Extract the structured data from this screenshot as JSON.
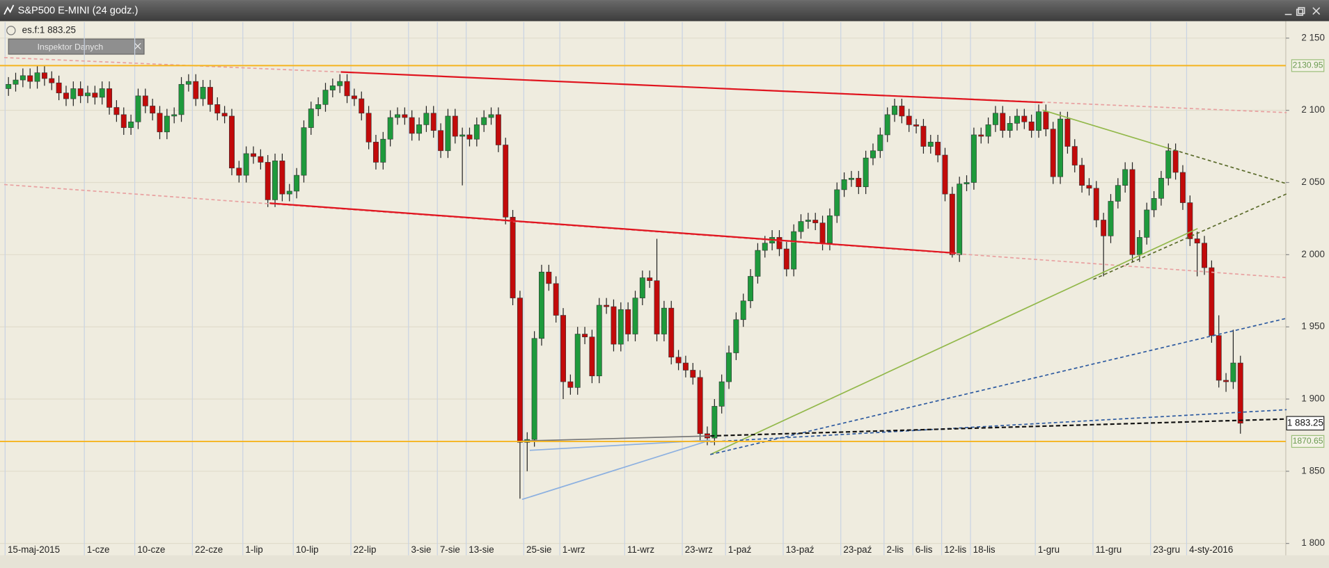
{
  "window": {
    "title": "S&P500 E-MINI (24 godz.)",
    "header_text": "es.f:1 883.25",
    "inspector_button": "Inspektor Danych"
  },
  "chart_data": {
    "type": "candlestick",
    "up_color": "#1e9a3c",
    "down_color": "#c20a0a",
    "categories": [
      "15-maj-2015",
      null,
      null,
      null,
      null,
      null,
      null,
      null,
      null,
      null,
      null,
      "1-cze",
      null,
      null,
      null,
      null,
      null,
      null,
      "10-cze",
      null,
      null,
      null,
      null,
      null,
      null,
      null,
      "22-cze",
      null,
      null,
      null,
      null,
      null,
      null,
      "1-lip",
      null,
      null,
      null,
      null,
      null,
      null,
      "10-lip",
      null,
      null,
      null,
      null,
      null,
      null,
      null,
      "22-lip",
      null,
      null,
      null,
      null,
      null,
      null,
      null,
      "3-sie",
      null,
      null,
      null,
      "7-sie",
      null,
      null,
      null,
      "13-sie",
      null,
      null,
      null,
      null,
      null,
      null,
      null,
      "25-sie",
      null,
      null,
      null,
      null,
      "1-wrz",
      null,
      null,
      null,
      null,
      null,
      null,
      null,
      null,
      "11-wrz",
      null,
      null,
      null,
      null,
      null,
      null,
      null,
      "23-wrz",
      null,
      null,
      null,
      null,
      null,
      "1-paź",
      null,
      null,
      null,
      null,
      null,
      null,
      null,
      "13-paź",
      null,
      null,
      null,
      null,
      null,
      null,
      null,
      "23-paź",
      null,
      null,
      null,
      null,
      null,
      "2-lis",
      null,
      null,
      null,
      "6-lis",
      null,
      null,
      null,
      "12-lis",
      null,
      null,
      null,
      "18-lis",
      null,
      null,
      null,
      null,
      null,
      null,
      null,
      null,
      "1-gru",
      null,
      null,
      null,
      null,
      null,
      null,
      null,
      "11-gru",
      null,
      null,
      null,
      null,
      null,
      null,
      null,
      "23-gru",
      null,
      null,
      null,
      null,
      "4-sty-2016",
      null,
      null,
      null,
      null,
      null,
      null,
      null
    ],
    "open": [
      2115,
      2118,
      2121,
      2124,
      2120,
      2126,
      2122,
      2119,
      2112,
      2108,
      2115,
      2110,
      2112,
      2109,
      2115,
      2102,
      2097,
      2088,
      2092,
      2110,
      2103,
      2098,
      2085,
      2096,
      2097,
      2118,
      2120,
      2108,
      2116,
      2104,
      2098,
      2096,
      2060,
      2055,
      2070,
      2068,
      2064,
      2038,
      2065,
      2042,
      2044,
      2055,
      2088,
      2101,
      2104,
      2114,
      2117,
      2120,
      2110,
      2108,
      2098,
      2078,
      2064,
      2080,
      2095,
      2097,
      2095,
      2084,
      2090,
      2098,
      2086,
      2072,
      2096,
      2082,
      2083,
      2080,
      2090,
      2095,
      2097,
      2076,
      2026,
      1970,
      1870,
      1872,
      1942,
      1988,
      1980,
      1958,
      1912,
      1908,
      1945,
      1943,
      1916,
      1965,
      1964,
      1938,
      1962,
      1945,
      1970,
      1984,
      1982,
      1945,
      1963,
      1929,
      1925,
      1920,
      1915,
      1876,
      1873,
      1895,
      1912,
      1932,
      1955,
      1968,
      1985,
      2003,
      2008,
      2012,
      2004,
      1990,
      2016,
      2023,
      2024,
      2022,
      2008,
      2027,
      2045,
      2052,
      2053,
      2047,
      2067,
      2072,
      2083,
      2097,
      2103,
      2096,
      2090,
      2089,
      2075,
      2078,
      2069,
      2042,
      2000,
      2049,
      2050,
      2083,
      2082,
      2090,
      2098,
      2086,
      2091,
      2096,
      2092,
      2086,
      2099,
      2087,
      2054,
      2094,
      2075,
      2062,
      2048,
      2046,
      2024,
      2013,
      2037,
      2048,
      2059,
      2000,
      2012,
      2031,
      2039,
      2053,
      2072,
      2057,
      2036,
      2011,
      2008,
      1991,
      1944,
      1913,
      1912,
      1925
    ],
    "high": [
      2123,
      2126,
      2129,
      2129,
      2131,
      2131,
      2127,
      2124,
      2117,
      2120,
      2120,
      2117,
      2117,
      2120,
      2120,
      2107,
      2102,
      2097,
      2115,
      2115,
      2108,
      2103,
      2101,
      2102,
      2123,
      2125,
      2125,
      2121,
      2121,
      2109,
      2103,
      2101,
      2065,
      2075,
      2075,
      2073,
      2069,
      2070,
      2070,
      2049,
      2060,
      2093,
      2106,
      2109,
      2119,
      2122,
      2125,
      2125,
      2115,
      2113,
      2103,
      2083,
      2085,
      2100,
      2102,
      2102,
      2100,
      2095,
      2103,
      2103,
      2091,
      2101,
      2101,
      2088,
      2088,
      2095,
      2100,
      2102,
      2102,
      2081,
      2031,
      1975,
      1877,
      1947,
      1993,
      1993,
      1985,
      1963,
      1917,
      1950,
      1950,
      1948,
      1970,
      1970,
      1969,
      1967,
      1967,
      1975,
      1989,
      1989,
      2011,
      1968,
      1968,
      1934,
      1930,
      1925,
      1920,
      1881,
      1900,
      1917,
      1937,
      1960,
      1973,
      1990,
      2008,
      2013,
      2017,
      2017,
      2009,
      2021,
      2028,
      2029,
      2029,
      2027,
      2032,
      2050,
      2057,
      2058,
      2058,
      2072,
      2077,
      2088,
      2102,
      2108,
      2108,
      2101,
      2094,
      2094,
      2083,
      2083,
      2074,
      2047,
      2054,
      2055,
      2088,
      2088,
      2095,
      2103,
      2103,
      2096,
      2101,
      2101,
      2097,
      2104,
      2104,
      2092,
      2099,
      2099,
      2080,
      2067,
      2053,
      2051,
      2029,
      2042,
      2053,
      2064,
      2064,
      2017,
      2036,
      2044,
      2058,
      2077,
      2077,
      2062,
      2041,
      2016,
      2013,
      1996,
      1958,
      1918,
      1948,
      1930
    ],
    "low": [
      2110,
      2113,
      2116,
      2115,
      2115,
      2117,
      2114,
      2107,
      2103,
      2103,
      2105,
      2105,
      2104,
      2104,
      2097,
      2092,
      2083,
      2083,
      2087,
      2098,
      2093,
      2080,
      2080,
      2091,
      2092,
      2113,
      2103,
      2103,
      2099,
      2093,
      2091,
      2055,
      2050,
      2050,
      2063,
      2059,
      2033,
      2033,
      2037,
      2037,
      2039,
      2050,
      2083,
      2096,
      2099,
      2109,
      2112,
      2105,
      2103,
      2093,
      2073,
      2059,
      2059,
      2075,
      2090,
      2090,
      2079,
      2079,
      2085,
      2081,
      2067,
      2067,
      2077,
      2048,
      2075,
      2075,
      2085,
      2090,
      2071,
      2021,
      1965,
      1831,
      1850,
      1867,
      1937,
      1975,
      1953,
      1900,
      1903,
      1903,
      1938,
      1911,
      1911,
      1959,
      1933,
      1933,
      1940,
      1940,
      1965,
      1977,
      1940,
      1940,
      1924,
      1920,
      1915,
      1910,
      1871,
      1868,
      1868,
      1890,
      1907,
      1927,
      1950,
      1963,
      1980,
      1998,
      2003,
      1999,
      1985,
      1985,
      2011,
      2018,
      2017,
      2003,
      2003,
      2022,
      2040,
      2047,
      2042,
      2042,
      2062,
      2067,
      2078,
      2092,
      2091,
      2085,
      2084,
      2070,
      2070,
      2064,
      2037,
      1998,
      1995,
      2044,
      2045,
      2077,
      2077,
      2085,
      2081,
      2081,
      2086,
      2087,
      2081,
      2081,
      2082,
      2049,
      2049,
      2070,
      2057,
      2043,
      2041,
      2019,
      1985,
      2008,
      2032,
      2043,
      1995,
      1995,
      2007,
      2026,
      2034,
      2048,
      2052,
      2031,
      2006,
      1985,
      1986,
      1939,
      1908,
      1905,
      1907,
      1876
    ],
    "close": [
      2118,
      2121,
      2124,
      2120,
      2126,
      2122,
      2119,
      2112,
      2108,
      2115,
      2110,
      2112,
      2109,
      2115,
      2102,
      2097,
      2088,
      2092,
      2110,
      2103,
      2098,
      2085,
      2096,
      2097,
      2118,
      2120,
      2108,
      2116,
      2104,
      2098,
      2096,
      2060,
      2055,
      2070,
      2068,
      2064,
      2038,
      2065,
      2042,
      2044,
      2055,
      2088,
      2101,
      2104,
      2114,
      2117,
      2120,
      2110,
      2108,
      2098,
      2078,
      2064,
      2080,
      2095,
      2097,
      2095,
      2084,
      2090,
      2098,
      2086,
      2072,
      2096,
      2082,
      2083,
      2080,
      2090,
      2095,
      2097,
      2076,
      2026,
      1970,
      1870,
      1872,
      1942,
      1988,
      1980,
      1958,
      1912,
      1908,
      1945,
      1943,
      1916,
      1965,
      1964,
      1938,
      1962,
      1945,
      1970,
      1984,
      1982,
      1945,
      1963,
      1929,
      1925,
      1920,
      1915,
      1876,
      1873,
      1895,
      1912,
      1932,
      1955,
      1968,
      1985,
      2003,
      2008,
      2012,
      2004,
      1990,
      2016,
      2023,
      2024,
      2022,
      2008,
      2027,
      2045,
      2052,
      2053,
      2047,
      2067,
      2072,
      2083,
      2097,
      2103,
      2096,
      2090,
      2089,
      2075,
      2078,
      2069,
      2042,
      2000,
      2049,
      2050,
      2083,
      2082,
      2090,
      2098,
      2086,
      2091,
      2096,
      2092,
      2086,
      2099,
      2087,
      2054,
      2094,
      2075,
      2062,
      2048,
      2046,
      2024,
      2013,
      2037,
      2048,
      2059,
      2000,
      2012,
      2031,
      2039,
      2053,
      2072,
      2057,
      2036,
      2011,
      2008,
      1991,
      1944,
      1913,
      1912,
      1925,
      1883.25
    ],
    "ylim": [
      1800,
      2150
    ],
    "yticks": [
      {
        "value": 1800,
        "label": "1 800"
      },
      {
        "value": 1850,
        "label": "1 850"
      },
      {
        "value": 1900,
        "label": "1 900"
      },
      {
        "value": 1950,
        "label": "1 950"
      },
      {
        "value": 2000,
        "label": "2 000"
      },
      {
        "value": 2050,
        "label": "2 050"
      },
      {
        "value": 2100,
        "label": "2 100"
      },
      {
        "value": 2150,
        "label": "2 150"
      }
    ],
    "grid": true,
    "levels": [
      {
        "value": 2130.95,
        "label": "2130.95",
        "color": "#f5b41e"
      },
      {
        "value": 1870.65,
        "label": "1870.65",
        "color": "#f5b41e"
      }
    ],
    "last_price": {
      "value": 1883.25,
      "label": "1 883.25"
    }
  }
}
